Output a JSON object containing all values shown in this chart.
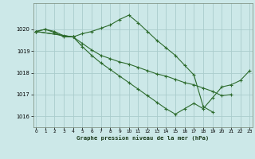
{
  "title": "Graphe pression niveau de la mer (hPa)",
  "bg_color": "#cce8e8",
  "grid_color": "#aacccc",
  "line_color": "#2d6b2d",
  "ylim": [
    1015.5,
    1021.2
  ],
  "yticks": [
    1016,
    1017,
    1018,
    1019,
    1020
  ],
  "xlim": [
    -0.3,
    23.3
  ],
  "xticks": [
    0,
    1,
    2,
    3,
    4,
    5,
    6,
    7,
    8,
    9,
    10,
    11,
    12,
    13,
    14,
    15,
    16,
    17,
    18,
    19,
    20,
    21,
    22,
    23
  ],
  "series": [
    {
      "x": [
        0,
        1,
        2,
        3,
        4,
        5,
        6,
        7,
        8,
        9,
        10,
        11,
        12,
        13,
        14,
        15,
        16,
        17,
        18,
        19
      ],
      "y": [
        1019.9,
        1020.0,
        1019.9,
        1019.7,
        1019.65,
        1019.8,
        1019.9,
        1020.05,
        1020.2,
        1020.45,
        1020.65,
        1020.3,
        1019.9,
        1019.5,
        1019.15,
        1018.8,
        1018.35,
        1017.9,
        1016.45,
        1016.2
      ]
    },
    {
      "x": [
        0,
        1,
        2,
        3,
        4
      ],
      "y": [
        1019.9,
        1020.0,
        1019.85,
        1019.65,
        1019.65
      ]
    },
    {
      "x": [
        0,
        4,
        5,
        6,
        7,
        8,
        9,
        10,
        11,
        12,
        13,
        14,
        15,
        16,
        17,
        18,
        19,
        20,
        21
      ],
      "y": [
        1019.9,
        1019.65,
        1019.35,
        1019.05,
        1018.8,
        1018.65,
        1018.5,
        1018.4,
        1018.25,
        1018.1,
        1017.95,
        1017.85,
        1017.7,
        1017.55,
        1017.45,
        1017.3,
        1017.15,
        1016.95,
        1017.0
      ]
    },
    {
      "x": [
        0,
        4,
        5,
        6,
        7,
        8,
        9,
        10,
        11,
        12,
        13,
        14,
        15,
        16,
        17,
        18,
        19,
        20,
        21,
        22,
        23
      ],
      "y": [
        1019.9,
        1019.65,
        1019.2,
        1018.8,
        1018.45,
        1018.15,
        1017.85,
        1017.55,
        1017.25,
        1016.95,
        1016.65,
        1016.35,
        1016.1,
        1016.35,
        1016.6,
        1016.35,
        1016.85,
        1017.35,
        1017.45,
        1017.65,
        1018.1
      ]
    }
  ]
}
